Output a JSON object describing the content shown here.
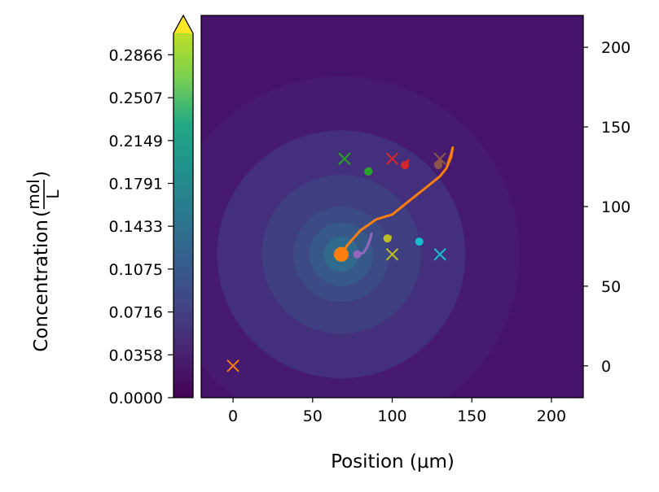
{
  "chart_data": {
    "type": "contour",
    "xlabel": "Position (μm)",
    "colorbar": {
      "label": "Concentration",
      "unit_numerator": "mol",
      "unit_denominator": "L",
      "colormap": "viridis",
      "range": [
        0.0,
        0.3045
      ],
      "extend": "max",
      "ticks": [
        "0.0000",
        "0.0358",
        "0.0716",
        "0.1075",
        "0.1433",
        "0.1791",
        "0.2149",
        "0.2507",
        "0.2866"
      ]
    },
    "xlim": [
      -20,
      220
    ],
    "ylim": [
      -20,
      220
    ],
    "x_ticks": [
      0,
      50,
      100,
      150,
      200
    ],
    "y_ticks": [
      0,
      50,
      100,
      150,
      200
    ],
    "y_axis_side": "right",
    "source_center": [
      68,
      70
    ],
    "contour_colors": [
      "#461b6f",
      "#432f7b",
      "#3f3e80",
      "#3c4a85",
      "#37598a",
      "#306a8d",
      "#2a788e"
    ],
    "contour_radii": [
      112,
      78,
      50,
      30,
      20,
      11,
      5
    ],
    "targets": [
      {
        "x": 0,
        "y": 0,
        "color": "#ff7f0e"
      },
      {
        "x": 70,
        "y": 130,
        "color": "#2ca02c"
      },
      {
        "x": 100,
        "y": 130,
        "color": "#d62728"
      },
      {
        "x": 130,
        "y": 130,
        "color": "#8c564b"
      },
      {
        "x": 100,
        "y": 70,
        "color": "#bcbd22"
      },
      {
        "x": 130,
        "y": 70,
        "color": "#17becf"
      }
    ],
    "trajectories": [
      {
        "color": "#ff7f0e",
        "width": 3,
        "end_marker": 9,
        "points": [
          [
            68,
            70
          ],
          [
            72,
            76
          ],
          [
            80,
            85
          ],
          [
            90,
            92
          ],
          [
            100,
            95
          ],
          [
            110,
            103
          ],
          [
            120,
            111
          ],
          [
            130,
            119
          ],
          [
            134,
            124
          ],
          [
            137,
            131
          ],
          [
            138,
            137
          ],
          [
            137,
            133
          ],
          [
            135,
            127
          ]
        ]
      },
      {
        "color": "#9467bd",
        "width": 3,
        "end_marker": 5,
        "points": [
          [
            78,
            70
          ],
          [
            82,
            71
          ],
          [
            84,
            74
          ],
          [
            86,
            79
          ],
          [
            87,
            83
          ]
        ]
      },
      {
        "color": "#2ca02c",
        "width": 3,
        "end_marker": 5,
        "points": [
          [
            85,
            122
          ],
          [
            86,
            124
          ],
          [
            87,
            122
          ]
        ]
      },
      {
        "color": "#d62728",
        "width": 3,
        "end_marker": 5,
        "points": [
          [
            108,
            126
          ],
          [
            110,
            129
          ],
          [
            109,
            127
          ]
        ]
      },
      {
        "color": "#8c564b",
        "width": 3,
        "end_marker": 5,
        "points": [
          [
            129,
            126
          ],
          [
            130,
            130
          ],
          [
            131,
            128
          ]
        ]
      },
      {
        "color": "#bcbd22",
        "width": 3,
        "end_marker": 5,
        "points": [
          [
            97,
            80
          ],
          [
            99,
            81
          ],
          [
            98,
            80
          ]
        ]
      },
      {
        "color": "#17becf",
        "width": 3,
        "end_marker": 5,
        "points": [
          [
            117,
            78
          ],
          [
            118,
            79
          ],
          [
            117,
            78
          ]
        ]
      }
    ]
  }
}
